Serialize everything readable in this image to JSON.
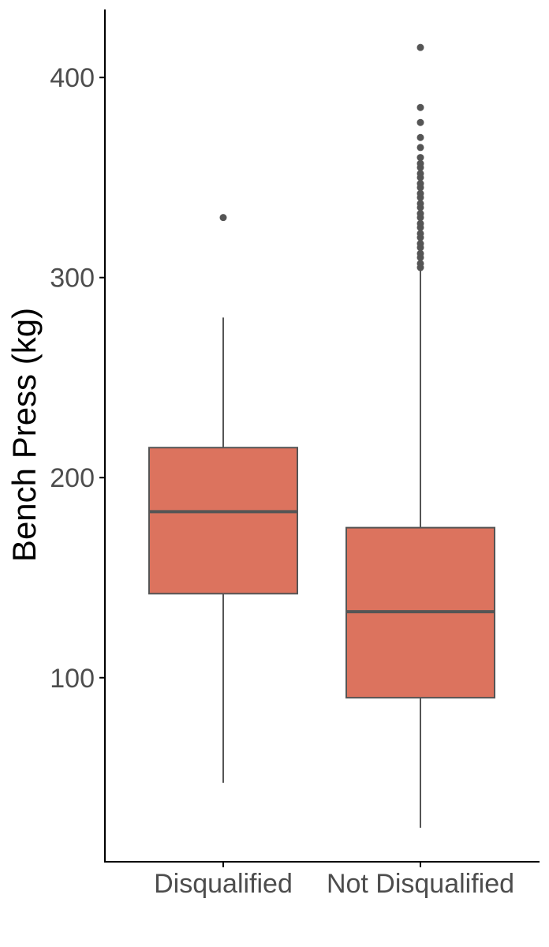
{
  "chart_data": {
    "type": "boxplot",
    "title": "",
    "xlabel": "",
    "ylabel": "Bench Press (kg)",
    "ylim": [
      8,
      434
    ],
    "yticks": [
      100,
      200,
      300,
      400
    ],
    "categories": [
      "Disqualified",
      "Not Disqualified"
    ],
    "series": [
      {
        "boxes": [
          {
            "category": "Disqualified",
            "min": 47.5,
            "q1": 142,
            "median": 183,
            "q3": 215,
            "max": 280,
            "outliers": [
              330
            ]
          },
          {
            "category": "Not Disqualified",
            "min": 25,
            "q1": 90,
            "median": 133,
            "q3": 175,
            "max": 304,
            "outliers": [
              305,
              307,
              310,
              312,
              315,
              317,
              320,
              322,
              325,
              327,
              330,
              332,
              335,
              337,
              340,
              342,
              345,
              347,
              350,
              352,
              355,
              357,
              360,
              365,
              370,
              377.5,
              385,
              415
            ]
          }
        ]
      }
    ],
    "grid": false,
    "legend": "none",
    "colors": {
      "box_fill": "#DC735E",
      "box_stroke": "#555555",
      "outlier": "#555555",
      "axis": "#000000",
      "tick_text": "#4d4d4d"
    }
  }
}
